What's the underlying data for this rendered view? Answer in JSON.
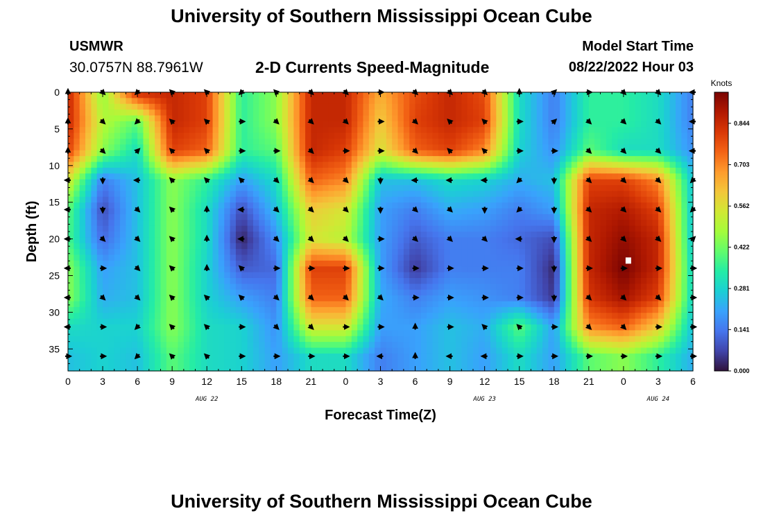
{
  "header": {
    "title": "University of Southern Mississippi Ocean Cube",
    "station": "USMWR",
    "coords": "30.0757N  88.7961W",
    "plot_title": "2-D Currents Speed-Magnitude",
    "start_label": "Model Start Time",
    "start_value": "08/22/2022 Hour 03"
  },
  "footer": {
    "title": "University of Southern Mississippi Ocean Cube"
  },
  "colors": {
    "scale": [
      "#30123b",
      "#4145ab",
      "#4675ed",
      "#39a2fc",
      "#1bcfd4",
      "#24eca6",
      "#61fc6c",
      "#a4fc3b",
      "#d1e834",
      "#f3c63a",
      "#fe9b2d",
      "#f36315",
      "#d93806",
      "#b11901",
      "#7a0402"
    ],
    "arrow": "#000000",
    "marker": "#ffffff"
  },
  "chart_data": {
    "type": "heatmap",
    "title": "2-D Currents Speed-Magnitude",
    "xlabel": "Forecast Time(Z)",
    "ylabel": "Depth (ft)",
    "x_tick_labels": [
      "0",
      "3",
      "6",
      "9",
      "12",
      "15",
      "18",
      "21",
      "0",
      "3",
      "6",
      "9",
      "12",
      "15",
      "18",
      "21",
      "0",
      "3",
      "6"
    ],
    "x_range_hours": [
      0,
      54
    ],
    "y_ticks": [
      0,
      5,
      10,
      15,
      20,
      25,
      30,
      35
    ],
    "y_range": [
      0,
      38
    ],
    "y_inverted": true,
    "date_labels": [
      {
        "label": "AUG 22",
        "hour": 12
      },
      {
        "label": "AUG 23",
        "hour": 36
      },
      {
        "label": "AUG 24",
        "hour": 51
      }
    ],
    "colorbar": {
      "unit": "Knots",
      "ticks": [
        0.0,
        0.141,
        0.281,
        0.422,
        0.562,
        0.703,
        0.844
      ],
      "tick_labels": [
        "0.000",
        "0.141",
        "0.281",
        "0.422",
        "0.562",
        "0.703",
        "0.844"
      ],
      "range": [
        0,
        0.95
      ]
    },
    "arrow_times_hours": [
      0,
      3,
      6,
      9,
      12,
      15,
      18,
      21,
      24,
      27,
      30,
      33,
      36,
      39,
      42,
      45,
      48,
      51,
      54
    ],
    "arrow_depths_ft": [
      0,
      4,
      8,
      12,
      16,
      20,
      24,
      28,
      32,
      36
    ],
    "speed_samples_knots": [
      [
        0.85,
        0.45,
        0.85,
        0.85,
        0.8,
        0.35,
        0.45,
        0.85,
        0.85,
        0.65,
        0.78,
        0.85,
        0.78,
        0.3,
        0.15,
        0.35,
        0.35,
        0.3,
        0.15
      ],
      [
        0.85,
        0.5,
        0.4,
        0.85,
        0.8,
        0.35,
        0.45,
        0.85,
        0.85,
        0.6,
        0.8,
        0.85,
        0.8,
        0.3,
        0.15,
        0.35,
        0.35,
        0.3,
        0.15
      ],
      [
        0.8,
        0.45,
        0.3,
        0.8,
        0.75,
        0.35,
        0.4,
        0.85,
        0.8,
        0.55,
        0.75,
        0.8,
        0.7,
        0.28,
        0.18,
        0.4,
        0.3,
        0.3,
        0.18
      ],
      [
        0.55,
        0.15,
        0.25,
        0.45,
        0.35,
        0.2,
        0.3,
        0.75,
        0.7,
        0.25,
        0.25,
        0.3,
        0.28,
        0.22,
        0.25,
        0.8,
        0.8,
        0.7,
        0.25
      ],
      [
        0.4,
        0.08,
        0.25,
        0.45,
        0.3,
        0.08,
        0.25,
        0.6,
        0.55,
        0.2,
        0.15,
        0.22,
        0.2,
        0.15,
        0.2,
        0.85,
        0.88,
        0.8,
        0.25
      ],
      [
        0.38,
        0.12,
        0.25,
        0.45,
        0.3,
        0.02,
        0.18,
        0.55,
        0.5,
        0.2,
        0.1,
        0.15,
        0.15,
        0.12,
        0.08,
        0.85,
        0.92,
        0.85,
        0.25
      ],
      [
        0.45,
        0.2,
        0.25,
        0.45,
        0.28,
        0.1,
        0.12,
        0.8,
        0.8,
        0.2,
        0.05,
        0.15,
        0.15,
        0.15,
        0.03,
        0.85,
        0.95,
        0.85,
        0.28
      ],
      [
        0.45,
        0.22,
        0.25,
        0.45,
        0.28,
        0.2,
        0.15,
        0.75,
        0.75,
        0.22,
        0.15,
        0.2,
        0.18,
        0.15,
        0.05,
        0.82,
        0.9,
        0.8,
        0.28
      ],
      [
        0.3,
        0.28,
        0.28,
        0.45,
        0.3,
        0.28,
        0.18,
        0.55,
        0.55,
        0.2,
        0.2,
        0.25,
        0.22,
        0.4,
        0.2,
        0.7,
        0.75,
        0.6,
        0.25
      ],
      [
        0.25,
        0.28,
        0.25,
        0.4,
        0.3,
        0.28,
        0.2,
        0.3,
        0.3,
        0.15,
        0.2,
        0.25,
        0.2,
        0.3,
        0.2,
        0.4,
        0.45,
        0.35,
        0.22
      ]
    ],
    "direction_samples_deg": [
      [
        0,
        135,
        225,
        315,
        315,
        225,
        315,
        135,
        135,
        90,
        135,
        135,
        135,
        0,
        45,
        90,
        135,
        135,
        270
      ],
      [
        0,
        135,
        225,
        315,
        315,
        90,
        135,
        135,
        135,
        90,
        135,
        315,
        315,
        90,
        45,
        135,
        135,
        135,
        270
      ],
      [
        0,
        135,
        45,
        315,
        315,
        90,
        90,
        135,
        90,
        90,
        135,
        315,
        315,
        90,
        90,
        135,
        135,
        135,
        270
      ],
      [
        270,
        180,
        270,
        315,
        315,
        315,
        135,
        135,
        135,
        180,
        270,
        270,
        270,
        225,
        180,
        135,
        135,
        135,
        225
      ],
      [
        270,
        180,
        135,
        315,
        0,
        270,
        135,
        135,
        135,
        180,
        135,
        135,
        180,
        225,
        180,
        135,
        135,
        135,
        225
      ],
      [
        270,
        135,
        135,
        315,
        0,
        270,
        135,
        135,
        135,
        90,
        135,
        135,
        135,
        270,
        180,
        135,
        135,
        135,
        45
      ],
      [
        270,
        90,
        135,
        315,
        0,
        315,
        90,
        90,
        90,
        90,
        90,
        90,
        90,
        90,
        180,
        90,
        90,
        90,
        90
      ],
      [
        270,
        135,
        135,
        315,
        315,
        315,
        135,
        135,
        135,
        135,
        90,
        90,
        90,
        90,
        180,
        135,
        135,
        135,
        90
      ],
      [
        270,
        90,
        225,
        315,
        315,
        90,
        135,
        135,
        90,
        90,
        0,
        90,
        315,
        315,
        90,
        135,
        135,
        90,
        90
      ],
      [
        90,
        90,
        225,
        315,
        315,
        90,
        90,
        90,
        90,
        270,
        0,
        270,
        270,
        90,
        90,
        90,
        90,
        90,
        90
      ]
    ],
    "highlight_point": {
      "hour": 48,
      "depth_ft": 23
    }
  }
}
